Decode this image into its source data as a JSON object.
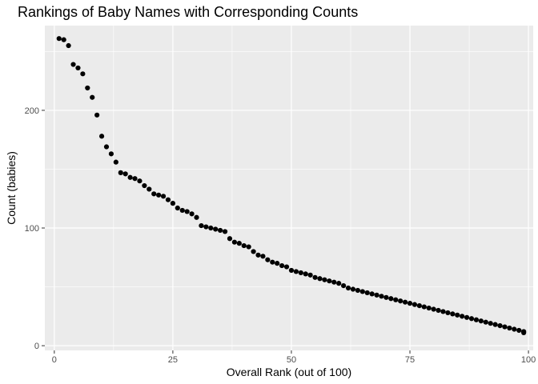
{
  "chart_data": {
    "type": "scatter",
    "title": "Rankings of Baby Names with Corresponding Counts",
    "xlabel": "Overall Rank (out of 100)",
    "ylabel": "Count (babies)",
    "xlim": [
      -2,
      101
    ],
    "ylim": [
      -4,
      272
    ],
    "x_ticks": [
      0,
      25,
      50,
      75,
      100
    ],
    "x_tick_labels": [
      "0",
      "25",
      "50",
      "75",
      "100"
    ],
    "y_ticks": [
      0,
      100,
      200
    ],
    "y_tick_labels": [
      "0",
      "100",
      "200"
    ],
    "grid": true,
    "legend": "none",
    "colors": {
      "panel": "#ebebeb",
      "grid": "#ffffff",
      "points": "#000000"
    },
    "series": [
      {
        "x": [
          1,
          2,
          3,
          4,
          5,
          6,
          7,
          8,
          9,
          10,
          11,
          12,
          13,
          14,
          15,
          16,
          17,
          18,
          19,
          20,
          21,
          22,
          23,
          24,
          25,
          26,
          27,
          28,
          29,
          30,
          31,
          32,
          33,
          34,
          35,
          36,
          37,
          38,
          39,
          40,
          41,
          42,
          43,
          44,
          45,
          46,
          47,
          48,
          49,
          50,
          51,
          52,
          53,
          54,
          55,
          56,
          57,
          58,
          59,
          60,
          61,
          62,
          63,
          64,
          65,
          66,
          67,
          68,
          69,
          70,
          71,
          72,
          73,
          74,
          75,
          76,
          77,
          78,
          79,
          80,
          81,
          82,
          83,
          84,
          85,
          86,
          87,
          88,
          89,
          90,
          91,
          92,
          93,
          94,
          95,
          96,
          97,
          98,
          99,
          99
        ],
        "y": [
          261,
          260,
          255,
          239,
          236,
          231,
          219,
          211,
          196,
          178,
          169,
          163,
          156,
          147,
          146,
          143,
          142,
          140,
          136,
          133,
          129,
          128,
          127,
          124,
          121,
          117,
          115,
          114,
          112,
          109,
          102,
          101,
          100,
          99,
          98,
          97,
          91,
          88,
          87,
          85,
          84,
          80,
          77,
          76,
          73,
          71,
          70,
          68,
          67,
          64,
          63,
          62,
          61,
          60,
          58,
          57,
          56,
          55,
          54,
          53,
          51,
          49,
          48,
          47,
          46,
          45,
          44,
          43,
          42,
          41,
          40,
          39,
          38,
          37,
          36,
          35,
          34,
          33,
          32,
          31,
          30,
          29,
          28,
          27,
          26,
          25,
          24,
          23,
          22,
          21,
          20,
          19,
          18,
          17,
          16,
          15,
          14,
          13,
          12,
          11
        ]
      }
    ]
  }
}
